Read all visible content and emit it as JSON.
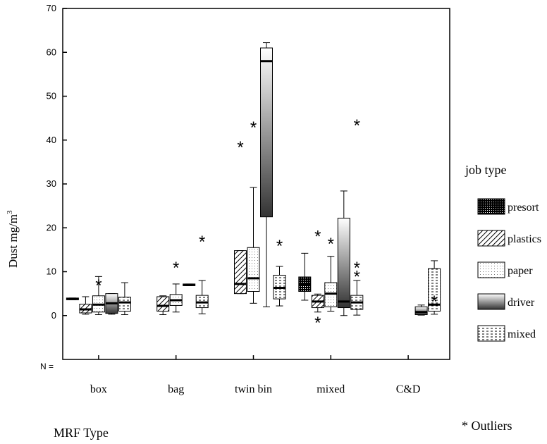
{
  "chart_data": {
    "type": "box",
    "ylabel": "Dust mg/m",
    "ylabel_superscript": "3",
    "xlabel": "MRF Type",
    "n_label": "N =",
    "ylim": [
      -10,
      70
    ],
    "yticks": [
      0,
      10,
      20,
      30,
      40,
      50,
      60,
      70
    ],
    "categories": [
      "box",
      "bag",
      "twin bin",
      "mixed",
      "C&D"
    ],
    "legend_title": "job type",
    "legend_position": "right",
    "outliers_note": "* Outliers",
    "series": [
      {
        "name": "presort",
        "pattern": "dots-dense"
      },
      {
        "name": "plastics",
        "pattern": "diagonal"
      },
      {
        "name": "paper",
        "pattern": "dots-sparse"
      },
      {
        "name": "driver",
        "pattern": "gradient"
      },
      {
        "name": "mixed",
        "pattern": "dashes"
      }
    ],
    "boxes": [
      {
        "category": "box",
        "series": "presort",
        "min": 3.6,
        "q1": 3.6,
        "median": 3.8,
        "q3": 4.0,
        "max": 4.0,
        "outliers": []
      },
      {
        "category": "box",
        "series": "plastics",
        "min": 0.3,
        "q1": 0.6,
        "median": 1.4,
        "q3": 2.6,
        "max": 4.3,
        "outliers": []
      },
      {
        "category": "box",
        "series": "paper",
        "min": 0.2,
        "q1": 0.8,
        "median": 2.5,
        "q3": 4.5,
        "max": 8.9,
        "outliers": [
          7.5
        ]
      },
      {
        "category": "box",
        "series": "driver",
        "min": 0.3,
        "q1": 0.5,
        "median": 2.8,
        "q3": 5.0,
        "max": 5.0,
        "outliers": []
      },
      {
        "category": "box",
        "series": "mixed",
        "min": 0.2,
        "q1": 1.0,
        "median": 3.0,
        "q3": 4.2,
        "max": 7.5,
        "outliers": []
      },
      {
        "category": "bag",
        "series": "plastics",
        "min": 0.2,
        "q1": 1.0,
        "median": 2.2,
        "q3": 4.3,
        "max": 4.5,
        "outliers": []
      },
      {
        "category": "bag",
        "series": "paper",
        "min": 0.8,
        "q1": 2.3,
        "median": 3.5,
        "q3": 4.8,
        "max": 7.2,
        "outliers": [
          11.5
        ]
      },
      {
        "category": "bag",
        "series": "driver",
        "min": 6.8,
        "q1": 6.8,
        "median": 7.0,
        "q3": 7.2,
        "max": 7.2,
        "outliers": []
      },
      {
        "category": "bag",
        "series": "mixed",
        "min": 0.4,
        "q1": 1.8,
        "median": 3.0,
        "q3": 4.6,
        "max": 8.0,
        "outliers": [
          17.5
        ]
      },
      {
        "category": "twin bin",
        "series": "plastics",
        "min": 5.0,
        "q1": 5.0,
        "median": 7.2,
        "q3": 14.8,
        "max": 14.8,
        "outliers": [
          39.0
        ]
      },
      {
        "category": "twin bin",
        "series": "paper",
        "min": 2.8,
        "q1": 5.5,
        "median": 8.5,
        "q3": 15.5,
        "max": 29.2,
        "outliers": [
          43.5
        ]
      },
      {
        "category": "twin bin",
        "series": "driver",
        "min": 2.0,
        "q1": 22.5,
        "median": 58.0,
        "q3": 61.0,
        "max": 62.2,
        "outliers": []
      },
      {
        "category": "twin bin",
        "series": "mixed",
        "min": 2.2,
        "q1": 3.8,
        "median": 6.3,
        "q3": 9.2,
        "max": 11.2,
        "outliers": [
          16.5
        ]
      },
      {
        "category": "mixed",
        "series": "presort",
        "min": 3.5,
        "q1": 5.5,
        "median": 7.0,
        "q3": 8.8,
        "max": 14.2,
        "outliers": []
      },
      {
        "category": "mixed",
        "series": "plastics",
        "min": 0.8,
        "q1": 1.8,
        "median": 3.2,
        "q3": 4.6,
        "max": 4.9,
        "outliers": [
          18.7,
          -1.0
        ]
      },
      {
        "category": "mixed",
        "series": "paper",
        "min": 1.0,
        "q1": 2.0,
        "median": 5.0,
        "q3": 7.5,
        "max": 13.5,
        "outliers": [
          17.0
        ]
      },
      {
        "category": "mixed",
        "series": "driver",
        "min": 0.0,
        "q1": 1.8,
        "median": 3.2,
        "q3": 22.2,
        "max": 28.4,
        "outliers": []
      },
      {
        "category": "mixed",
        "series": "mixed",
        "min": 0.1,
        "q1": 1.4,
        "median": 3.0,
        "q3": 4.6,
        "max": 8.0,
        "outliers": [
          44.0,
          11.5,
          9.5
        ]
      },
      {
        "category": "C&D",
        "series": "driver",
        "min": 0.1,
        "q1": 0.2,
        "median": 0.8,
        "q3": 2.0,
        "max": 2.4,
        "outliers": []
      },
      {
        "category": "C&D",
        "series": "mixed",
        "min": 0.3,
        "q1": 1.0,
        "median": 2.5,
        "q3": 10.7,
        "max": 12.5,
        "outliers": [
          3.8
        ]
      }
    ]
  }
}
